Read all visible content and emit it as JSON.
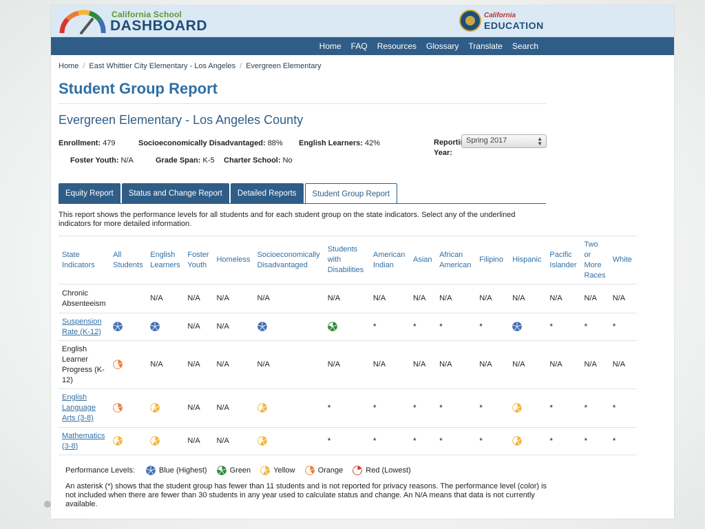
{
  "header": {
    "logo_line1": "California School",
    "logo_line2": "DASHBOARD",
    "cde_line1": "California",
    "cde_line2": "EDUCATION"
  },
  "nav": [
    "Home",
    "FAQ",
    "Resources",
    "Glossary",
    "Translate",
    "Search"
  ],
  "breadcrumb": [
    "Home",
    "East Whittier City Elementary - Los Angeles",
    "Evergreen Elementary"
  ],
  "page_title": "Student Group Report",
  "school_title": "Evergreen Elementary - Los Angeles County",
  "info": {
    "enrollment_label": "Enrollment:",
    "enrollment": "479",
    "sed_label": "Socioeconomically Disadvantaged:",
    "sed": "88%",
    "el_label": "English Learners:",
    "el": "42%",
    "fy_label": "Foster Youth:",
    "fy": "N/A",
    "gs_label": "Grade Span:",
    "gs": "K-5",
    "cs_label": "Charter School:",
    "cs": "No"
  },
  "reporting": {
    "label": "Reporting Year:",
    "value": "Spring 2017"
  },
  "tabs": [
    "Equity Report",
    "Status and Change Report",
    "Detailed Reports",
    "Student Group Report"
  ],
  "active_tab": 3,
  "description": "This report shows the performance levels for all students and for each student group on the state indicators. Select any of the underlined indicators for more detailed information.",
  "table": {
    "headers": [
      "State Indicators",
      "All Students",
      "English Learners",
      "Foster Youth",
      "Homeless",
      "Socioeconomically Disadvantaged",
      "Students with Disabilities",
      "American Indian",
      "Asian",
      "African American",
      "Filipino",
      "Hispanic",
      "Pacific Islander",
      "Two or More Races",
      "White"
    ],
    "rows": [
      {
        "indicator": "Chronic Absenteeism",
        "link": false,
        "cells": [
          "",
          "N/A",
          "N/A",
          "N/A",
          "N/A",
          "N/A",
          "N/A",
          "N/A",
          "N/A",
          "N/A",
          "N/A",
          "N/A",
          "N/A",
          "N/A"
        ]
      },
      {
        "indicator": "Suspension Rate (K-12)",
        "link": true,
        "cells": [
          "@blue",
          "@blue",
          "N/A",
          "N/A",
          "@blue",
          "@green",
          "*",
          "*",
          "*",
          "*",
          "@blue",
          "*",
          "*",
          "*"
        ]
      },
      {
        "indicator": "English Learner Progress (K-12)",
        "link": false,
        "cells": [
          "@orange",
          "N/A",
          "N/A",
          "N/A",
          "N/A",
          "N/A",
          "N/A",
          "N/A",
          "N/A",
          "N/A",
          "N/A",
          "N/A",
          "N/A",
          "N/A"
        ]
      },
      {
        "indicator": "English Language Arts (3-8)",
        "link": true,
        "cells": [
          "@orange",
          "@yellow",
          "N/A",
          "N/A",
          "@yellow",
          "*",
          "*",
          "*",
          "*",
          "*",
          "@yellow",
          "*",
          "*",
          "*"
        ]
      },
      {
        "indicator": "Mathematics (3-8)",
        "link": true,
        "cells": [
          "@yellow",
          "@yellow",
          "N/A",
          "N/A",
          "@yellow",
          "*",
          "*",
          "*",
          "*",
          "*",
          "@yellow",
          "*",
          "*",
          "*"
        ]
      }
    ]
  },
  "legend": {
    "title": "Performance Levels:",
    "items": [
      {
        "key": "blue",
        "label": "Blue (Highest)"
      },
      {
        "key": "green",
        "label": "Green"
      },
      {
        "key": "yellow",
        "label": "Yellow"
      },
      {
        "key": "orange",
        "label": "Orange"
      },
      {
        "key": "red",
        "label": "Red (Lowest)"
      }
    ]
  },
  "footnote": "An asterisk (*) shows that the student group has fewer than 11 students and is not reported for privacy reasons. The performance level (color) is not included when there are fewer than 30 students in any year used to calculate status and change. An N/A means that data is not currently available.",
  "colors": {
    "blue": "#3f6fb5",
    "green": "#2e8b3a",
    "yellow": "#f3b53a",
    "orange": "#ef7b35",
    "red": "#d9352b",
    "nav": "#2f5d87",
    "title": "#2f6fa5"
  }
}
